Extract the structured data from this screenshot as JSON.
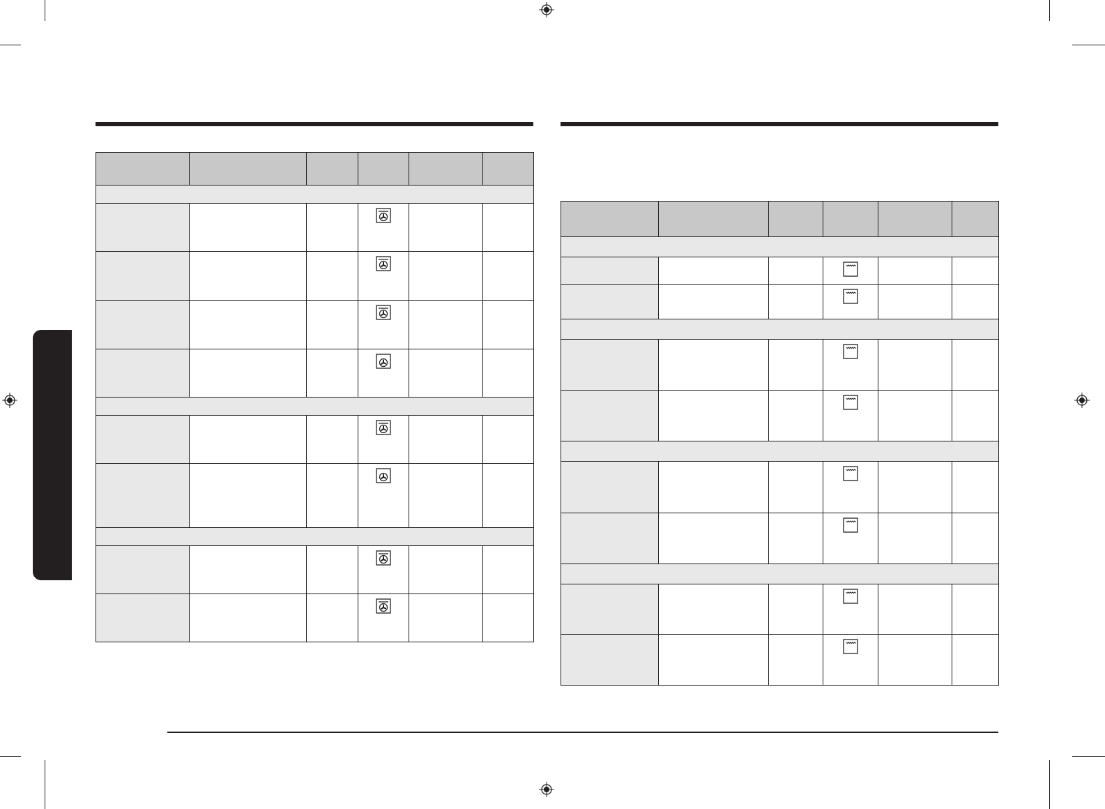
{
  "colors": {
    "ink": "#231f20",
    "header_fill": "#c8c8c8",
    "section_fill": "#e8e8e8",
    "side_tab": "#231f20"
  },
  "left_table": {
    "columns": 6,
    "rows": [
      {
        "type": "section"
      },
      {
        "type": "data",
        "icon": "fan-with-top-heater-icon"
      },
      {
        "type": "data",
        "icon": "fan-with-top-heater-icon"
      },
      {
        "type": "data",
        "icon": "fan-with-top-heater-icon"
      },
      {
        "type": "data",
        "icon": "fan-icon"
      },
      {
        "type": "section"
      },
      {
        "type": "data",
        "icon": "fan-with-top-heater-icon"
      },
      {
        "type": "data",
        "icon": "fan-icon"
      },
      {
        "type": "section"
      },
      {
        "type": "data",
        "icon": "fan-with-top-heater-icon"
      },
      {
        "type": "data",
        "icon": "fan-with-top-heater-icon"
      }
    ]
  },
  "right_table": {
    "columns": 6,
    "rows": [
      {
        "type": "section"
      },
      {
        "type": "data",
        "icon": "top-heater-icon"
      },
      {
        "type": "data",
        "icon": "top-heater-icon"
      },
      {
        "type": "section"
      },
      {
        "type": "data",
        "icon": "top-heater-icon"
      },
      {
        "type": "data",
        "icon": "top-heater-icon"
      },
      {
        "type": "section"
      },
      {
        "type": "data",
        "icon": "top-heater-icon"
      },
      {
        "type": "data",
        "icon": "top-heater-icon"
      },
      {
        "type": "section"
      },
      {
        "type": "data",
        "icon": "top-heater-icon"
      },
      {
        "type": "data",
        "icon": "top-heater-icon"
      }
    ]
  }
}
